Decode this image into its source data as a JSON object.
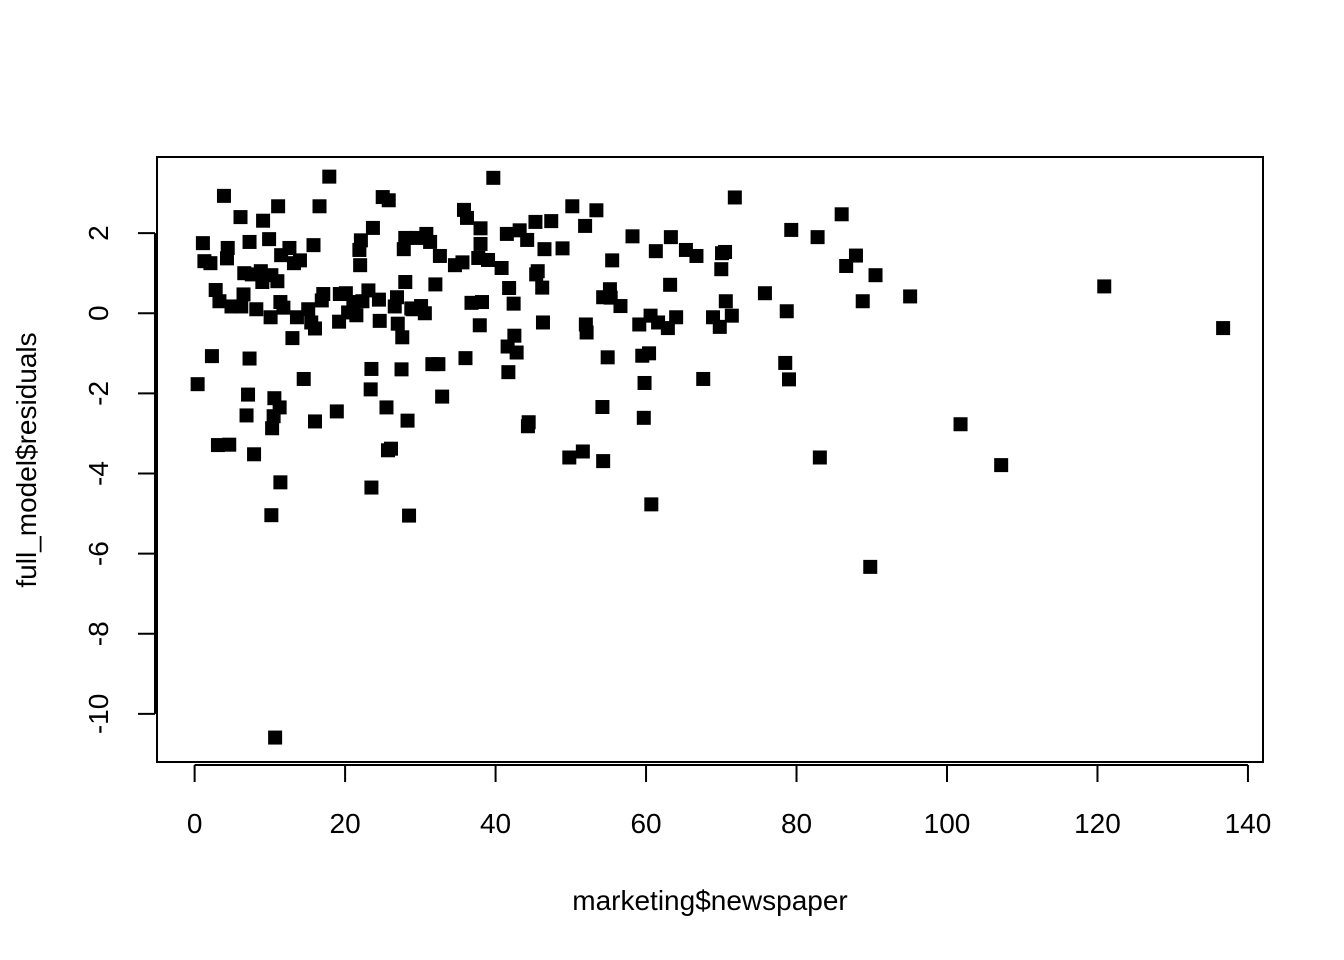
{
  "chart_data": {
    "type": "scatter",
    "xlabel": "marketing$newspaper",
    "ylabel": "full_model$residuals",
    "xlim": [
      -5,
      142
    ],
    "ylim": [
      -11.2,
      3.9
    ],
    "xticks": [
      0,
      20,
      40,
      60,
      80,
      100,
      120,
      140
    ],
    "yticks": [
      -10,
      -8,
      -6,
      -4,
      -2,
      0,
      2
    ],
    "marker": "filled-square",
    "marker_color": "#000000",
    "grid": false,
    "legend": "none",
    "points": [
      [
        0.4,
        -1.77
      ],
      [
        1.1,
        1.75
      ],
      [
        1.3,
        1.3
      ],
      [
        2.1,
        1.25
      ],
      [
        2.3,
        -1.07
      ],
      [
        2.8,
        0.58
      ],
      [
        3.1,
        -3.29
      ],
      [
        3.3,
        0.3
      ],
      [
        3.9,
        2.93
      ],
      [
        4.3,
        1.37
      ],
      [
        4.4,
        1.63
      ],
      [
        4.6,
        -3.28
      ],
      [
        4.9,
        0.17
      ],
      [
        6.1,
        2.4
      ],
      [
        6.2,
        0.17
      ],
      [
        6.5,
        0.47
      ],
      [
        6.6,
        1.0
      ],
      [
        6.9,
        -2.55
      ],
      [
        7.1,
        -2.03
      ],
      [
        7.3,
        1.78
      ],
      [
        7.3,
        -1.13
      ],
      [
        7.6,
        0.97
      ],
      [
        7.9,
        -3.52
      ],
      [
        8.2,
        0.1
      ],
      [
        8.8,
        1.05
      ],
      [
        9.0,
        0.78
      ],
      [
        9.1,
        2.31
      ],
      [
        9.9,
        1.85
      ],
      [
        10.1,
        -0.1
      ],
      [
        10.2,
        0.95
      ],
      [
        10.2,
        -5.04
      ],
      [
        10.3,
        -2.87
      ],
      [
        10.5,
        -2.57
      ],
      [
        10.6,
        -2.12
      ],
      [
        10.7,
        -10.59
      ],
      [
        11.0,
        0.8
      ],
      [
        11.1,
        2.67
      ],
      [
        11.3,
        -2.35
      ],
      [
        11.4,
        0.28
      ],
      [
        11.4,
        -4.22
      ],
      [
        11.5,
        1.45
      ],
      [
        11.8,
        0.14
      ],
      [
        12.6,
        1.63
      ],
      [
        13.0,
        -0.62
      ],
      [
        13.2,
        1.25
      ],
      [
        13.6,
        -0.1
      ],
      [
        14.0,
        1.32
      ],
      [
        14.5,
        -1.64
      ],
      [
        15.1,
        0.1
      ],
      [
        15.5,
        -0.23
      ],
      [
        15.8,
        1.7
      ],
      [
        16.0,
        -0.38
      ],
      [
        16.0,
        -2.7
      ],
      [
        16.6,
        2.67
      ],
      [
        16.9,
        0.32
      ],
      [
        17.1,
        0.48
      ],
      [
        17.9,
        3.41
      ],
      [
        18.9,
        -2.45
      ],
      [
        19.2,
        -0.21
      ],
      [
        19.3,
        0.48
      ],
      [
        20.1,
        0.5
      ],
      [
        20.4,
        0.02
      ],
      [
        21.1,
        0.28
      ],
      [
        21.5,
        -0.05
      ],
      [
        21.9,
        1.58
      ],
      [
        22.0,
        1.2
      ],
      [
        22.1,
        1.82
      ],
      [
        22.3,
        0.3
      ],
      [
        23.1,
        0.57
      ],
      [
        23.4,
        -1.9
      ],
      [
        23.5,
        -1.39
      ],
      [
        23.5,
        -4.35
      ],
      [
        23.7,
        2.13
      ],
      [
        24.5,
        0.34
      ],
      [
        24.6,
        -0.19
      ],
      [
        25.0,
        2.9
      ],
      [
        25.5,
        -2.35
      ],
      [
        25.7,
        -3.42
      ],
      [
        25.8,
        2.82
      ],
      [
        26.1,
        -3.38
      ],
      [
        26.6,
        0.17
      ],
      [
        26.9,
        0.4
      ],
      [
        27.0,
        -0.26
      ],
      [
        27.5,
        -1.4
      ],
      [
        27.6,
        -0.6
      ],
      [
        27.8,
        1.6
      ],
      [
        28.0,
        1.88
      ],
      [
        28.0,
        0.78
      ],
      [
        28.3,
        -2.68
      ],
      [
        28.5,
        -5.05
      ],
      [
        28.8,
        0.12
      ],
      [
        29.0,
        0.1
      ],
      [
        29.5,
        1.88
      ],
      [
        30.1,
        0.18
      ],
      [
        30.6,
        0.0
      ],
      [
        30.8,
        1.98
      ],
      [
        31.3,
        1.78
      ],
      [
        31.6,
        -1.27
      ],
      [
        32.0,
        0.72
      ],
      [
        32.4,
        -1.27
      ],
      [
        32.6,
        1.43
      ],
      [
        32.9,
        -2.08
      ],
      [
        34.6,
        1.2
      ],
      [
        35.6,
        1.27
      ],
      [
        35.8,
        2.58
      ],
      [
        36.0,
        -1.12
      ],
      [
        36.2,
        2.38
      ],
      [
        36.8,
        0.26
      ],
      [
        37.7,
        1.38
      ],
      [
        37.9,
        -0.3
      ],
      [
        38.0,
        2.12
      ],
      [
        38.0,
        1.73
      ],
      [
        38.2,
        0.28
      ],
      [
        39.0,
        1.33
      ],
      [
        39.7,
        3.38
      ],
      [
        40.8,
        1.13
      ],
      [
        41.5,
        1.98
      ],
      [
        41.6,
        -0.83
      ],
      [
        41.7,
        -1.47
      ],
      [
        41.8,
        0.63
      ],
      [
        42.4,
        0.24
      ],
      [
        42.5,
        -0.56
      ],
      [
        42.8,
        -0.98
      ],
      [
        43.2,
        2.07
      ],
      [
        44.2,
        1.83
      ],
      [
        44.3,
        -2.82
      ],
      [
        44.4,
        -2.72
      ],
      [
        45.3,
        2.28
      ],
      [
        45.4,
        0.97
      ],
      [
        45.6,
        1.05
      ],
      [
        46.2,
        0.64
      ],
      [
        46.3,
        -0.23
      ],
      [
        46.5,
        1.6
      ],
      [
        47.4,
        2.3
      ],
      [
        48.9,
        1.62
      ],
      [
        49.8,
        -3.6
      ],
      [
        50.2,
        2.67
      ],
      [
        51.6,
        -3.45
      ],
      [
        51.9,
        2.18
      ],
      [
        52.0,
        -0.28
      ],
      [
        52.1,
        -0.48
      ],
      [
        53.4,
        2.57
      ],
      [
        54.2,
        -2.34
      ],
      [
        54.3,
        -3.69
      ],
      [
        54.3,
        0.4
      ],
      [
        54.9,
        -1.1
      ],
      [
        55.2,
        0.6
      ],
      [
        55.3,
        0.39
      ],
      [
        55.5,
        1.32
      ],
      [
        56.6,
        0.18
      ],
      [
        58.2,
        1.92
      ],
      [
        59.1,
        -0.28
      ],
      [
        59.5,
        -1.06
      ],
      [
        59.7,
        -2.61
      ],
      [
        59.8,
        -1.74
      ],
      [
        60.4,
        -1.0
      ],
      [
        60.6,
        -0.06
      ],
      [
        60.7,
        -4.77
      ],
      [
        61.3,
        1.55
      ],
      [
        61.6,
        -0.23
      ],
      [
        62.9,
        -0.37
      ],
      [
        63.2,
        0.71
      ],
      [
        63.3,
        1.9
      ],
      [
        64.0,
        -0.1
      ],
      [
        65.3,
        1.58
      ],
      [
        66.7,
        1.43
      ],
      [
        67.6,
        -1.64
      ],
      [
        68.9,
        -0.1
      ],
      [
        69.8,
        -0.34
      ],
      [
        70.0,
        1.1
      ],
      [
        70.1,
        1.5
      ],
      [
        70.5,
        1.53
      ],
      [
        70.6,
        0.3
      ],
      [
        71.4,
        -0.06
      ],
      [
        71.8,
        2.89
      ],
      [
        75.8,
        0.5
      ],
      [
        78.5,
        -1.24
      ],
      [
        78.7,
        0.05
      ],
      [
        79.0,
        -1.65
      ],
      [
        79.3,
        2.08
      ],
      [
        82.8,
        1.9
      ],
      [
        83.1,
        -3.6
      ],
      [
        86.0,
        2.47
      ],
      [
        86.6,
        1.18
      ],
      [
        87.9,
        1.44
      ],
      [
        88.8,
        0.3
      ],
      [
        89.8,
        -6.33
      ],
      [
        90.5,
        0.95
      ],
      [
        95.1,
        0.42
      ],
      [
        101.8,
        -2.77
      ],
      [
        107.2,
        -3.79
      ],
      [
        120.9,
        0.67
      ],
      [
        136.7,
        -0.37
      ]
    ]
  }
}
